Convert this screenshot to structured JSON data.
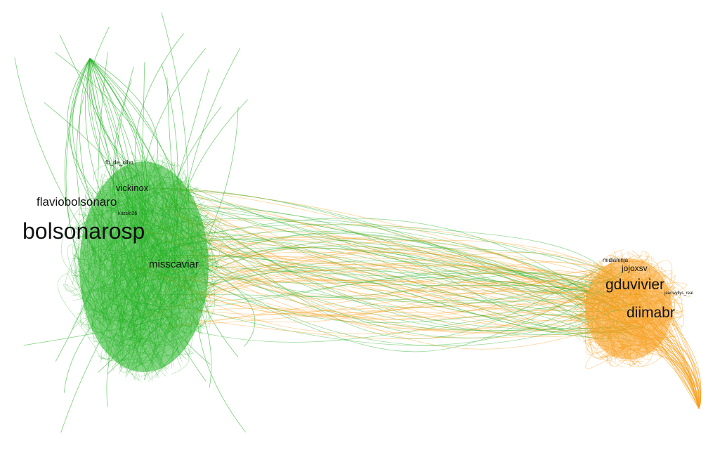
{
  "nodes": [
    {
      "label": "fb_de_olho"
    },
    {
      "label": "vickinox"
    },
    {
      "label": "flaviobolsonaro"
    },
    {
      "label": "luizskt26"
    },
    {
      "label": "bolsonarosp"
    },
    {
      "label": "misscaviar"
    },
    {
      "label": "midianinja"
    },
    {
      "label": "jojoxsv"
    },
    {
      "label": "gduvivier"
    },
    {
      "label": "jeanwyllys_real"
    },
    {
      "label": "diimabr"
    }
  ]
}
